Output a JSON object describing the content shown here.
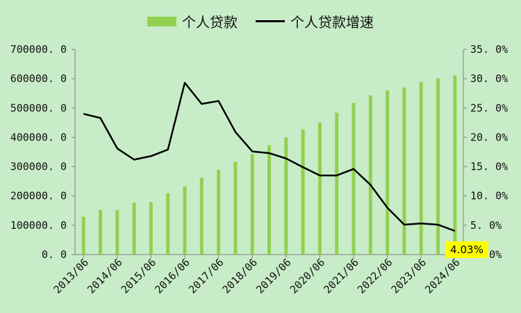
{
  "legend": {
    "bar_label": "个人贷款",
    "line_label": "个人贷款增速"
  },
  "colors": {
    "bar": "#92d050",
    "line": "#000000",
    "background": "#c8ecc8",
    "callout": "#ffff00"
  },
  "callout": {
    "text": "4.03%"
  },
  "chart_data": {
    "type": "bar+line",
    "x_tick_labels": [
      "2013/06",
      "2014/06",
      "2015/06",
      "2016/06",
      "2017/06",
      "2018/06",
      "2019/06",
      "2020/06",
      "2021/06",
      "2022/06",
      "2023/06",
      "2024/06"
    ],
    "y_left_ticks": [
      "0.0",
      "100000.0",
      "200000.0",
      "300000.0",
      "400000.0",
      "500000.0",
      "600000.0",
      "700000.0"
    ],
    "y_right_ticks": [
      "0.0%",
      "5.0%",
      "10.0%",
      "15.0%",
      "20.0%",
      "25.0%",
      "30.0%",
      "35.0%"
    ],
    "ylim_left": [
      0,
      700000
    ],
    "ylim_right": [
      0,
      35
    ],
    "series": [
      {
        "name": "个人贷款",
        "type": "bar",
        "axis": "left",
        "values": [
          129000,
          152000,
          152000,
          177000,
          179000,
          209000,
          232000,
          262000,
          289000,
          316000,
          343000,
          373000,
          400000,
          427000,
          451000,
          484000,
          517000,
          543000,
          560000,
          570000,
          589000,
          601000,
          611000
        ]
      },
      {
        "name": "个人贷款增速",
        "type": "line",
        "axis": "right",
        "values": [
          24.0,
          23.3,
          18.1,
          16.2,
          16.8,
          17.9,
          29.3,
          25.7,
          26.2,
          20.9,
          17.6,
          17.3,
          16.4,
          14.9,
          13.5,
          13.5,
          14.6,
          11.9,
          8.0,
          5.1,
          5.3,
          5.1,
          4.03
        ]
      }
    ]
  }
}
